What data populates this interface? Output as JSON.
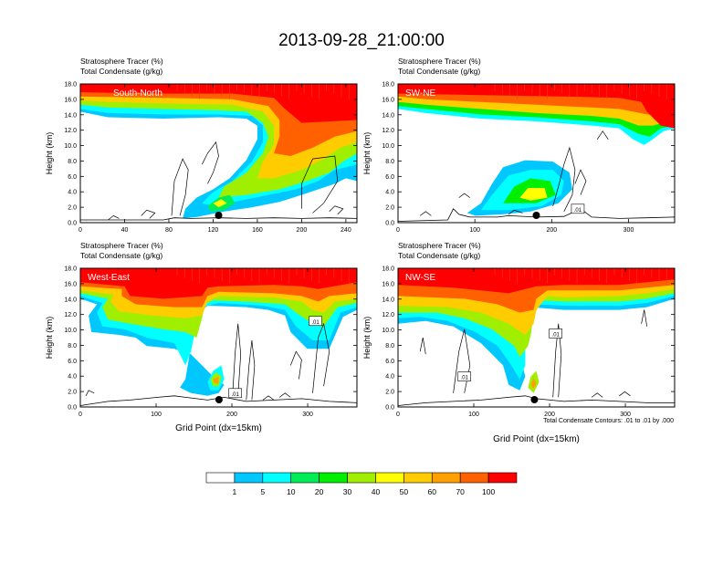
{
  "title": "2013-09-28_21:00:00",
  "chart_data": {
    "type": "heatmap",
    "main_title": "2013-09-28_21:00:00",
    "colorbar": {
      "levels": [
        "1",
        "5",
        "10",
        "20",
        "30",
        "40",
        "50",
        "60",
        "70",
        "100"
      ],
      "colors": [
        "#ffffff",
        "#1e7cff",
        "#00c8ff",
        "#00ffff",
        "#00ee55",
        "#00ee00",
        "#a0ee00",
        "#ffff00",
        "#ffcc00",
        "#ffa000",
        "#ff6000",
        "#ff0000"
      ]
    },
    "contour_note": "Total Condensate Contours: .01 to .01 by .000",
    "panels": [
      {
        "id": "sn",
        "label": "South-North",
        "left_title_1": "Stratosphere Tracer   (%)",
        "left_title_2": "Total Condensate   (g/kg)",
        "ylabel": "Height (km)",
        "xlabel": "",
        "xlim": [
          0,
          250
        ],
        "ylim": [
          0,
          18
        ],
        "xticks": [
          "0",
          "40",
          "80",
          "120",
          "160",
          "200",
          "240"
        ],
        "yticks": [
          "0.0",
          "2.0",
          "4.0",
          "6.0",
          "8.0",
          "10.0",
          "12.0",
          "14.0",
          "16.0",
          "18.0"
        ],
        "marker_x": 125,
        "contour_labels": []
      },
      {
        "id": "swne",
        "label": "SW-NE",
        "left_title_1": "Stratosphere Tracer   (%)",
        "left_title_2": "Total Condensate   (g/kg)",
        "ylabel": "Height (km)",
        "xlabel": "",
        "xlim": [
          0,
          360
        ],
        "ylim": [
          0,
          18
        ],
        "xticks": [
          "0",
          "100",
          "200",
          "300"
        ],
        "yticks": [
          "0.0",
          "2.0",
          "4.0",
          "6.0",
          "8.0",
          "10.0",
          "12.0",
          "14.0",
          "16.0",
          "18.0"
        ],
        "marker_x": 180,
        "contour_labels": [
          ".01"
        ]
      },
      {
        "id": "we",
        "label": "West-East",
        "left_title_1": "Stratosphere Tracer   (%)",
        "left_title_2": "Total Condensate   (g/kg)",
        "ylabel": "Height (km)",
        "xlabel": "Grid Point (dx=15km)",
        "xlim": [
          0,
          365
        ],
        "ylim": [
          0,
          18
        ],
        "xticks": [
          "0",
          "100",
          "200",
          "300"
        ],
        "yticks": [
          "0.0",
          "2.0",
          "4.0",
          "6.0",
          "8.0",
          "10.0",
          "12.0",
          "14.0",
          "16.0",
          "18.0"
        ],
        "marker_x": 183,
        "contour_labels": [
          ".01",
          ".01"
        ]
      },
      {
        "id": "nwse",
        "label": "NW-SE",
        "left_title_1": "Stratosphere Tracer   (%)",
        "left_title_2": "Total Condensate   (g/kg)",
        "ylabel": "Height (km)",
        "xlabel": "Grid Point (dx=15km)",
        "xlim": [
          0,
          365
        ],
        "ylim": [
          0,
          18
        ],
        "xticks": [
          "0",
          "100",
          "200",
          "300"
        ],
        "yticks": [
          "0.0",
          "2.0",
          "4.0",
          "6.0",
          "8.0",
          "10.0",
          "12.0",
          "14.0",
          "16.0",
          "18.0"
        ],
        "marker_x": 180,
        "contour_labels": [
          ".01",
          ".01"
        ]
      }
    ]
  }
}
